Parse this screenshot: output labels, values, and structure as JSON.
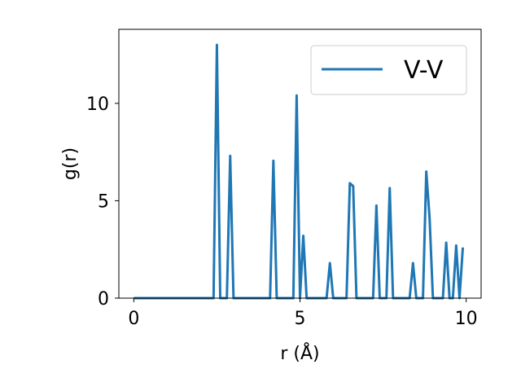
{
  "chart_data": {
    "type": "line",
    "title": "",
    "xlabel": "r (Å)",
    "ylabel": "g(r)",
    "xlim": [
      -0.45,
      10.45
    ],
    "ylim": [
      0,
      13.8
    ],
    "xticks": [
      0,
      5,
      10
    ],
    "yticks": [
      0,
      5,
      10
    ],
    "grid": false,
    "legend": {
      "position": "top-right",
      "entries": [
        "V-V"
      ]
    },
    "series": [
      {
        "name": "V-V",
        "color": "#1f77b4",
        "x": [
          0,
          2.4,
          2.5,
          2.6,
          2.8,
          2.9,
          3.0,
          4.1,
          4.2,
          4.3,
          4.8,
          4.9,
          5.0,
          5.1,
          5.2,
          5.8,
          5.9,
          6.0,
          6.4,
          6.5,
          6.6,
          6.7,
          7.2,
          7.3,
          7.4,
          7.6,
          7.7,
          7.8,
          8.3,
          8.4,
          8.5,
          8.7,
          8.8,
          8.9,
          9.0,
          9.3,
          9.4,
          9.5,
          9.6,
          9.7,
          9.8,
          9.9
        ],
        "y": [
          0,
          0,
          13.0,
          0,
          0,
          7.3,
          0,
          0,
          7.05,
          0,
          0,
          10.4,
          0,
          3.2,
          0,
          0,
          1.8,
          0,
          0,
          5.9,
          5.75,
          0,
          0,
          4.75,
          0,
          0,
          5.65,
          0,
          0,
          1.8,
          0,
          0,
          6.5,
          4.1,
          0,
          0,
          2.85,
          0,
          0,
          2.7,
          0,
          2.6
        ]
      }
    ]
  }
}
